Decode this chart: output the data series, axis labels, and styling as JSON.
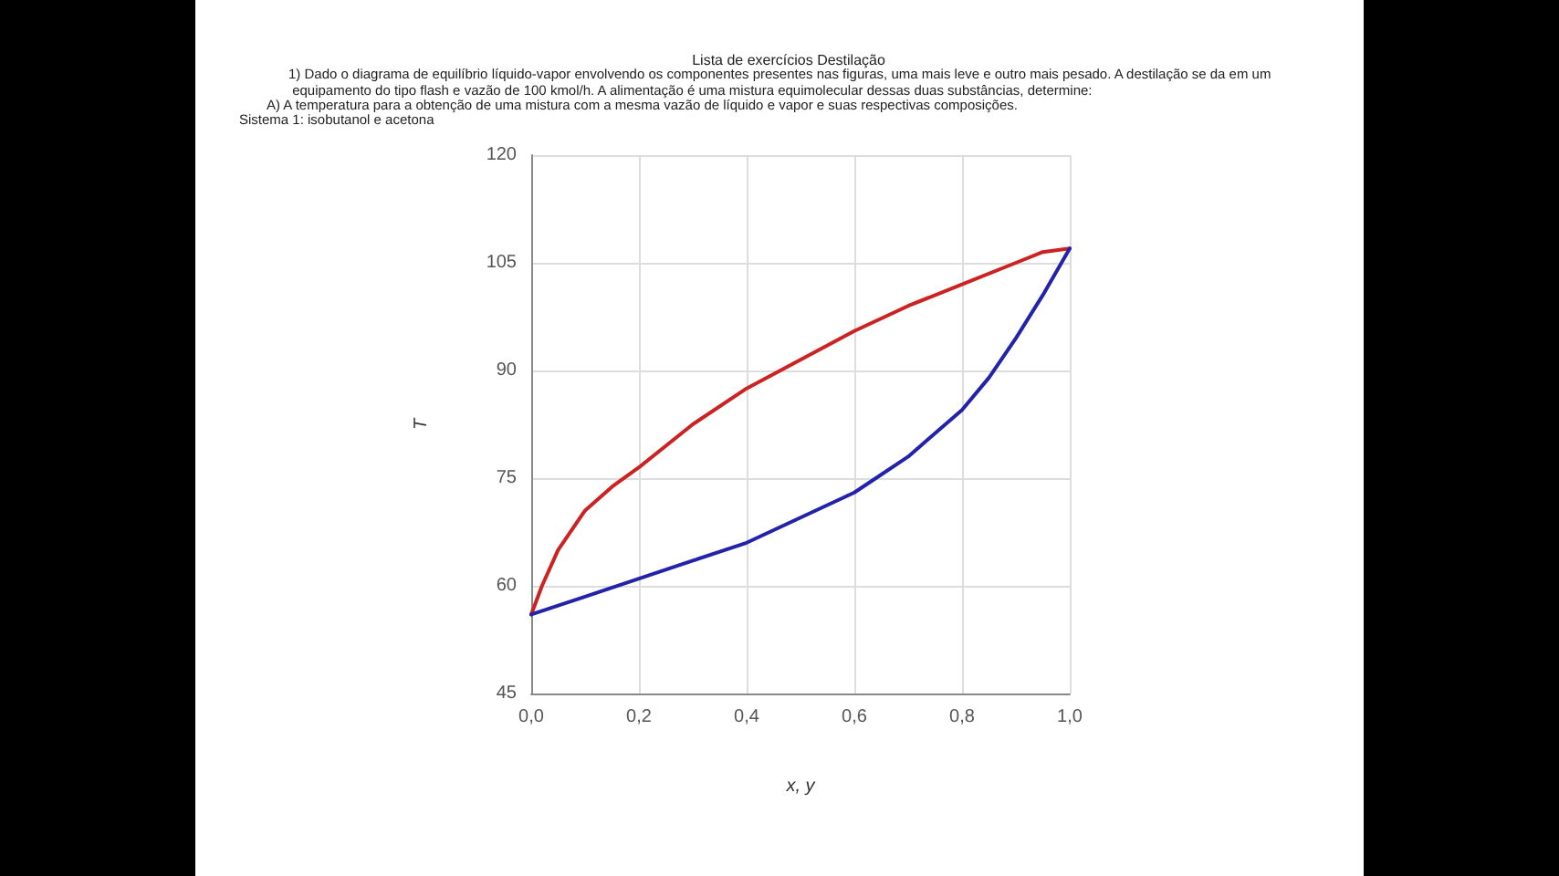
{
  "chart_data": {
    "type": "line",
    "title": "Lista de exercícios Destilação",
    "annotations": [
      "1) Dado o diagrama de equilíbrio líquido-vapor envolvendo os componentes presentes nas figuras, uma mais leve e outro mais pesado. A destilação se da em um equipamento do tipo flash e vazão de 100 kmol/h. A alimentação é uma mistura equimolecular dessas duas substâncias, determine:",
      "A) A temperatura para a obtenção de uma mistura com a mesma vazão de líquido e vapor e suas respectivas composições.",
      "Sistema 1: isobutanol e acetona"
    ],
    "xlabel": "x, y",
    "ylabel": "T",
    "series": [
      {
        "color": "#cc2222",
        "x": [
          0,
          0.02,
          0.05,
          0.1,
          0.15,
          0.2,
          0.3,
          0.4,
          0.5,
          0.6,
          0.7,
          0.8,
          0.9,
          0.95,
          1.0
        ],
        "values": [
          56,
          60,
          65,
          70.5,
          73.8,
          76.5,
          82.5,
          87.5,
          91.5,
          95.5,
          99,
          102,
          105,
          106.5,
          107
        ]
      },
      {
        "color": "#2222aa",
        "x": [
          0,
          0.1,
          0.2,
          0.3,
          0.4,
          0.5,
          0.6,
          0.7,
          0.8,
          0.85,
          0.9,
          0.95,
          1.0
        ],
        "values": [
          56,
          58.5,
          61,
          63.5,
          66,
          69.5,
          73,
          78,
          84.5,
          89,
          94.5,
          100.5,
          107
        ]
      }
    ],
    "xlim": [
      0,
      1
    ],
    "xticks": [
      {
        "value": 0,
        "label": "0,0"
      },
      {
        "value": 0.2,
        "label": "0,2"
      },
      {
        "value": 0.4,
        "label": "0,4"
      },
      {
        "value": 0.6,
        "label": "0,6"
      },
      {
        "value": 0.8,
        "label": "0,8"
      },
      {
        "value": 1,
        "label": "1,0"
      }
    ],
    "ylim": [
      45,
      120
    ],
    "yticks": [
      45,
      60,
      75,
      90,
      105,
      120
    ],
    "grid": true,
    "marker": "none",
    "line_style": "solid"
  }
}
